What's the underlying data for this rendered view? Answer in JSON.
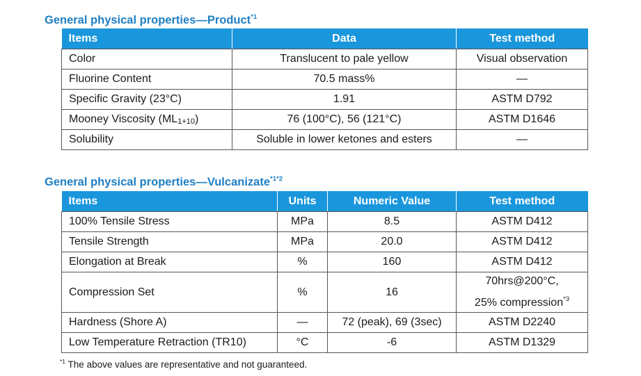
{
  "product": {
    "title": "General physical properties—Product",
    "title_note": "*1",
    "headers": [
      "Items",
      "Data",
      "Test method"
    ],
    "rows": [
      {
        "item": "Color",
        "data": "Translucent to pale yellow",
        "method": "Visual observation"
      },
      {
        "item": "Fluorine Content",
        "data": "70.5 mass%",
        "method": "—"
      },
      {
        "item": "Specific Gravity (23°C)",
        "data": "1.91",
        "method": "ASTM D792"
      },
      {
        "item": "Mooney Viscosity (ML",
        "item_sub": "1+10",
        "item_end": ")",
        "data": "76 (100°C), 56 (121°C)",
        "method": "ASTM D1646"
      },
      {
        "item": "Solubility",
        "data": "Soluble in lower ketones and esters",
        "method": "—"
      }
    ]
  },
  "vulcanizate": {
    "title": "General physical properties—Vulcanizate",
    "title_note": "*1*2",
    "headers": [
      "Items",
      "Units",
      "Numeric Value",
      "Test method"
    ],
    "rows": [
      {
        "item": "100% Tensile Stress",
        "units": "MPa",
        "value": "8.5",
        "method": "ASTM D412"
      },
      {
        "item": "Tensile Strength",
        "units": "MPa",
        "value": "20.0",
        "method": "ASTM D412"
      },
      {
        "item": "Elongation at Break",
        "units": "%",
        "value": "160",
        "method": "ASTM D412"
      },
      {
        "item": "Compression Set",
        "units": "%",
        "value": "16",
        "method_line1": "70hrs@200°C,",
        "method_line2": "25% compression",
        "method_note": "*3"
      },
      {
        "item": "Hardness (Shore A)",
        "units": "—",
        "value": "72 (peak), 69 (3sec)",
        "method": "ASTM D2240"
      },
      {
        "item": "Low Temperature Retraction (TR10)",
        "units": "°C",
        "value": "-6",
        "method": "ASTM D1329"
      }
    ]
  },
  "footnote": {
    "mark": "*1",
    "text": " The above values are representative and not guaranteed."
  }
}
